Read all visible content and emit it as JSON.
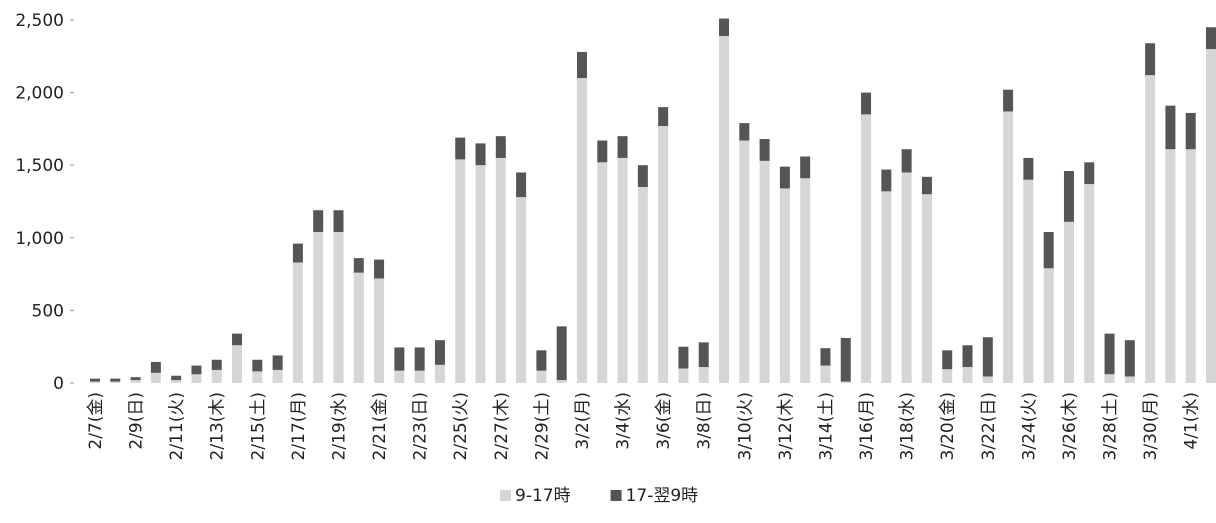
{
  "chart_data": {
    "type": "bar",
    "stacked": true,
    "categories": [
      "2/7(金)",
      null,
      "2/9(日)",
      null,
      "2/11(火)",
      null,
      "2/13(木)",
      null,
      "2/15(土)",
      null,
      "2/17(月)",
      null,
      "2/19(水)",
      null,
      "2/21(金)",
      null,
      "2/23(日)",
      null,
      "2/25(火)",
      null,
      "2/27(木)",
      null,
      "2/29(土)",
      null,
      "3/2(月)",
      null,
      "3/4(水)",
      null,
      "3/6(金)",
      null,
      "3/8(日)",
      null,
      "3/10(火)",
      null,
      "3/12(木)",
      null,
      "3/14(土)",
      null,
      "3/16(月)",
      null,
      "3/18(水)",
      null,
      "3/20(金)",
      null,
      "3/22(日)",
      null,
      "3/24(火)",
      null,
      "3/26(木)",
      null,
      "3/28(土)",
      null,
      "3/30(月)",
      null,
      "4/1(水)",
      null
    ],
    "series": [
      {
        "name": "9-17時",
        "color": "#d6d6d6",
        "values": [
          10,
          10,
          20,
          70,
          20,
          60,
          90,
          260,
          80,
          90,
          830,
          1040,
          1040,
          760,
          720,
          85,
          85,
          125,
          1540,
          1500,
          1550,
          1280,
          85,
          20,
          2100,
          1520,
          1550,
          1350,
          1770,
          100,
          110,
          2390,
          1670,
          1530,
          1340,
          1410,
          120,
          10,
          1850,
          1320,
          1450,
          1300,
          95,
          110,
          45,
          1870,
          1400,
          790,
          1110,
          1370,
          60,
          45,
          2120,
          1610,
          1610,
          2300
        ]
      },
      {
        "name": "17-翌9時",
        "color": "#555555",
        "values": [
          20,
          20,
          20,
          75,
          30,
          60,
          70,
          80,
          80,
          100,
          130,
          150,
          150,
          100,
          130,
          160,
          160,
          170,
          150,
          150,
          150,
          170,
          140,
          370,
          180,
          150,
          150,
          150,
          130,
          150,
          170,
          120,
          120,
          150,
          150,
          150,
          120,
          300,
          150,
          150,
          160,
          120,
          130,
          150,
          270,
          150,
          150,
          250,
          350,
          150,
          280,
          250,
          220,
          300,
          250,
          150
        ]
      }
    ],
    "ylim": [
      0,
      2500
    ],
    "yticks": [
      0,
      500,
      {
        "value": 1000,
        "label": "1,000"
      },
      {
        "value": 1500,
        "label": "1,500"
      },
      {
        "value": 2000,
        "label": "2,000"
      },
      {
        "value": 2500,
        "label": "2,500"
      }
    ],
    "grid": false,
    "legend": "bottom"
  }
}
